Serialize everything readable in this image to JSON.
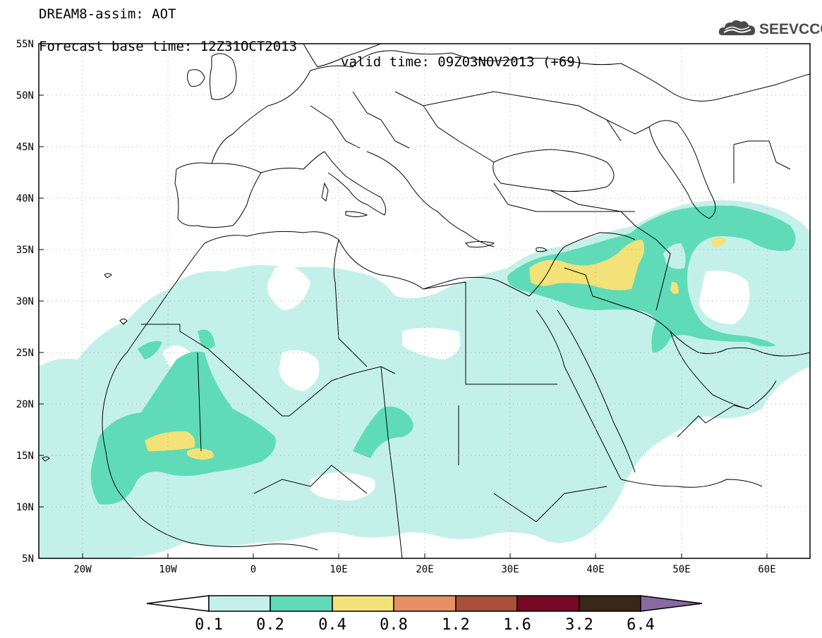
{
  "header": {
    "title": "DREAM8-assim: AOT",
    "base_time": "Forecast base time: 12Z31OCT2013",
    "valid_time": "valid time: 09Z03NOV2013 (+69)",
    "logo_text": "SEEVCCC"
  },
  "map": {
    "lat_ticks": [
      "55N",
      "50N",
      "45N",
      "40N",
      "35N",
      "30N",
      "25N",
      "20N",
      "15N",
      "10N",
      "5N"
    ],
    "lon_ticks": [
      "20W",
      "10W",
      "0",
      "10E",
      "20E",
      "30E",
      "40E",
      "50E",
      "60E"
    ],
    "extent": {
      "lon": [
        -25,
        65
      ],
      "lat": [
        5,
        55
      ]
    },
    "grid": "dotted"
  },
  "legend": {
    "levels": [
      "0.1",
      "0.2",
      "0.4",
      "0.8",
      "1.2",
      "1.6",
      "3.2",
      "6.4"
    ],
    "colors": [
      "#c4f0ea",
      "#5fdcb7",
      "#f2e278",
      "#e88e63",
      "#a94f3c",
      "#760925",
      "#3b2717",
      "#8a68a2"
    ],
    "under_color": "#ffffff"
  }
}
